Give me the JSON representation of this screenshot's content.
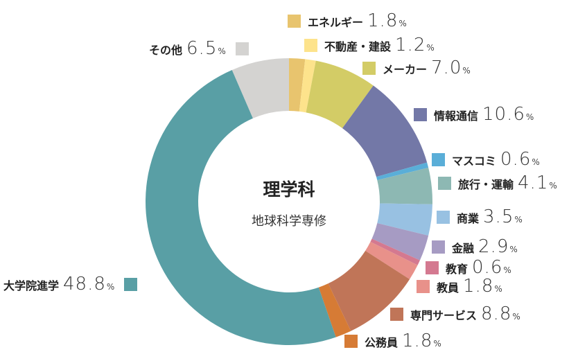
{
  "chart_data": {
    "type": "pie",
    "donut": true,
    "center_title": "理学科",
    "center_subtitle": "地球科学専修",
    "unit": "%",
    "slices": [
      {
        "label": "エネルギー",
        "value": 1.8,
        "display": "1.8",
        "color": "#e8c46e"
      },
      {
        "label": "不動産・建設",
        "value": 1.2,
        "display": "1.2",
        "color": "#fde38c"
      },
      {
        "label": "メーカー",
        "value": 7.0,
        "display": "7.0",
        "color": "#d3cc66"
      },
      {
        "label": "情報通信",
        "value": 10.6,
        "display": "10.6",
        "color": "#7378a7"
      },
      {
        "label": "マスコミ",
        "value": 0.6,
        "display": "0.6",
        "color": "#5aaed8"
      },
      {
        "label": "旅行・運輸",
        "value": 4.1,
        "display": "4.1",
        "color": "#8db8b3"
      },
      {
        "label": "商業",
        "value": 3.5,
        "display": "3.5",
        "color": "#98c1e2"
      },
      {
        "label": "金融",
        "value": 2.9,
        "display": "2.9",
        "color": "#a69bc3"
      },
      {
        "label": "教育",
        "value": 0.6,
        "display": "0.6",
        "color": "#d47990"
      },
      {
        "label": "教員",
        "value": 1.8,
        "display": "1.8",
        "color": "#e8918a"
      },
      {
        "label": "専門サービス",
        "value": 8.8,
        "display": "8.8",
        "color": "#c07558"
      },
      {
        "label": "公務員",
        "value": 1.8,
        "display": "1.8",
        "color": "#d67b35"
      },
      {
        "label": "大学院進学",
        "value": 48.8,
        "display": "48.8",
        "color": "#599fa5"
      },
      {
        "label": "その他",
        "value": 6.5,
        "display": "6.5",
        "color": "#d4d3d1"
      }
    ]
  }
}
